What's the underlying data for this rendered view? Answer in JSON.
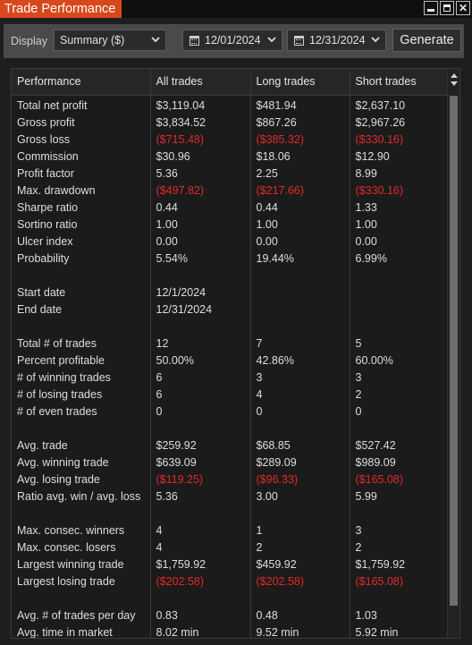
{
  "window": {
    "title": "Trade Performance"
  },
  "toolbar": {
    "display_label": "Display",
    "display_value": "Summary ($)",
    "start_date": "12/01/2024",
    "end_date": "12/31/2024",
    "generate_label": "Generate"
  },
  "colors": {
    "accent": "#d7481c",
    "negative": "#e02a2a",
    "background": "#1b1b1b"
  },
  "table": {
    "headers": [
      "Performance",
      "All trades",
      "Long trades",
      "Short trades"
    ],
    "rows": [
      {
        "label": "Total net profit",
        "values": [
          "$3,119.04",
          "$481.94",
          "$2,637.10"
        ],
        "neg": [
          false,
          false,
          false
        ]
      },
      {
        "label": "Gross profit",
        "values": [
          "$3,834.52",
          "$867.26",
          "$2,967.26"
        ],
        "neg": [
          false,
          false,
          false
        ]
      },
      {
        "label": "Gross loss",
        "values": [
          "($715.48)",
          "($385.32)",
          "($330.16)"
        ],
        "neg": [
          true,
          true,
          true
        ]
      },
      {
        "label": "Commission",
        "values": [
          "$30.96",
          "$18.06",
          "$12.90"
        ],
        "neg": [
          false,
          false,
          false
        ]
      },
      {
        "label": "Profit factor",
        "values": [
          "5.36",
          "2.25",
          "8.99"
        ],
        "neg": [
          false,
          false,
          false
        ]
      },
      {
        "label": "Max. drawdown",
        "values": [
          "($497.82)",
          "($217.66)",
          "($330.16)"
        ],
        "neg": [
          true,
          true,
          true
        ]
      },
      {
        "label": "Sharpe ratio",
        "values": [
          "0.44",
          "0.44",
          "1.33"
        ],
        "neg": [
          false,
          false,
          false
        ]
      },
      {
        "label": "Sortino ratio",
        "values": [
          "1.00",
          "1.00",
          "1.00"
        ],
        "neg": [
          false,
          false,
          false
        ]
      },
      {
        "label": "Ulcer index",
        "values": [
          "0.00",
          "0.00",
          "0.00"
        ],
        "neg": [
          false,
          false,
          false
        ]
      },
      {
        "label": "Probability",
        "values": [
          "5.54%",
          "19.44%",
          "6.99%"
        ],
        "neg": [
          false,
          false,
          false
        ]
      },
      {
        "label": "",
        "values": [
          "",
          "",
          ""
        ],
        "neg": [
          false,
          false,
          false
        ]
      },
      {
        "label": "Start date",
        "values": [
          "12/1/2024",
          "",
          ""
        ],
        "neg": [
          false,
          false,
          false
        ]
      },
      {
        "label": "End date",
        "values": [
          "12/31/2024",
          "",
          ""
        ],
        "neg": [
          false,
          false,
          false
        ]
      },
      {
        "label": "",
        "values": [
          "",
          "",
          ""
        ],
        "neg": [
          false,
          false,
          false
        ]
      },
      {
        "label": "Total # of trades",
        "values": [
          "12",
          "7",
          "5"
        ],
        "neg": [
          false,
          false,
          false
        ]
      },
      {
        "label": "Percent profitable",
        "values": [
          "50.00%",
          "42.86%",
          "60.00%"
        ],
        "neg": [
          false,
          false,
          false
        ]
      },
      {
        "label": "# of winning trades",
        "values": [
          "6",
          "3",
          "3"
        ],
        "neg": [
          false,
          false,
          false
        ]
      },
      {
        "label": "# of losing trades",
        "values": [
          "6",
          "4",
          "2"
        ],
        "neg": [
          false,
          false,
          false
        ]
      },
      {
        "label": "# of even trades",
        "values": [
          "0",
          "0",
          "0"
        ],
        "neg": [
          false,
          false,
          false
        ]
      },
      {
        "label": "",
        "values": [
          "",
          "",
          ""
        ],
        "neg": [
          false,
          false,
          false
        ]
      },
      {
        "label": "Avg. trade",
        "values": [
          "$259.92",
          "$68.85",
          "$527.42"
        ],
        "neg": [
          false,
          false,
          false
        ]
      },
      {
        "label": "Avg. winning trade",
        "values": [
          "$639.09",
          "$289.09",
          "$989.09"
        ],
        "neg": [
          false,
          false,
          false
        ]
      },
      {
        "label": "Avg. losing trade",
        "values": [
          "($119.25)",
          "($96.33)",
          "($165.08)"
        ],
        "neg": [
          true,
          true,
          true
        ]
      },
      {
        "label": "Ratio avg. win / avg. loss",
        "values": [
          "5.36",
          "3.00",
          "5.99"
        ],
        "neg": [
          false,
          false,
          false
        ]
      },
      {
        "label": "",
        "values": [
          "",
          "",
          ""
        ],
        "neg": [
          false,
          false,
          false
        ]
      },
      {
        "label": "Max. consec. winners",
        "values": [
          "4",
          "1",
          "3"
        ],
        "neg": [
          false,
          false,
          false
        ]
      },
      {
        "label": "Max. consec. losers",
        "values": [
          "4",
          "2",
          "2"
        ],
        "neg": [
          false,
          false,
          false
        ]
      },
      {
        "label": "Largest winning trade",
        "values": [
          "$1,759.92",
          "$459.92",
          "$1,759.92"
        ],
        "neg": [
          false,
          false,
          false
        ]
      },
      {
        "label": "Largest losing trade",
        "values": [
          "($202.58)",
          "($202.58)",
          "($165.08)"
        ],
        "neg": [
          true,
          true,
          true
        ]
      },
      {
        "label": "",
        "values": [
          "",
          "",
          ""
        ],
        "neg": [
          false,
          false,
          false
        ]
      },
      {
        "label": "Avg. # of trades per day",
        "values": [
          "0.83",
          "0.48",
          "1.03"
        ],
        "neg": [
          false,
          false,
          false
        ]
      },
      {
        "label": "Avg. time in market",
        "values": [
          "8.02 min",
          "9.52 min",
          "5.92 min"
        ],
        "neg": [
          false,
          false,
          false
        ]
      }
    ]
  }
}
